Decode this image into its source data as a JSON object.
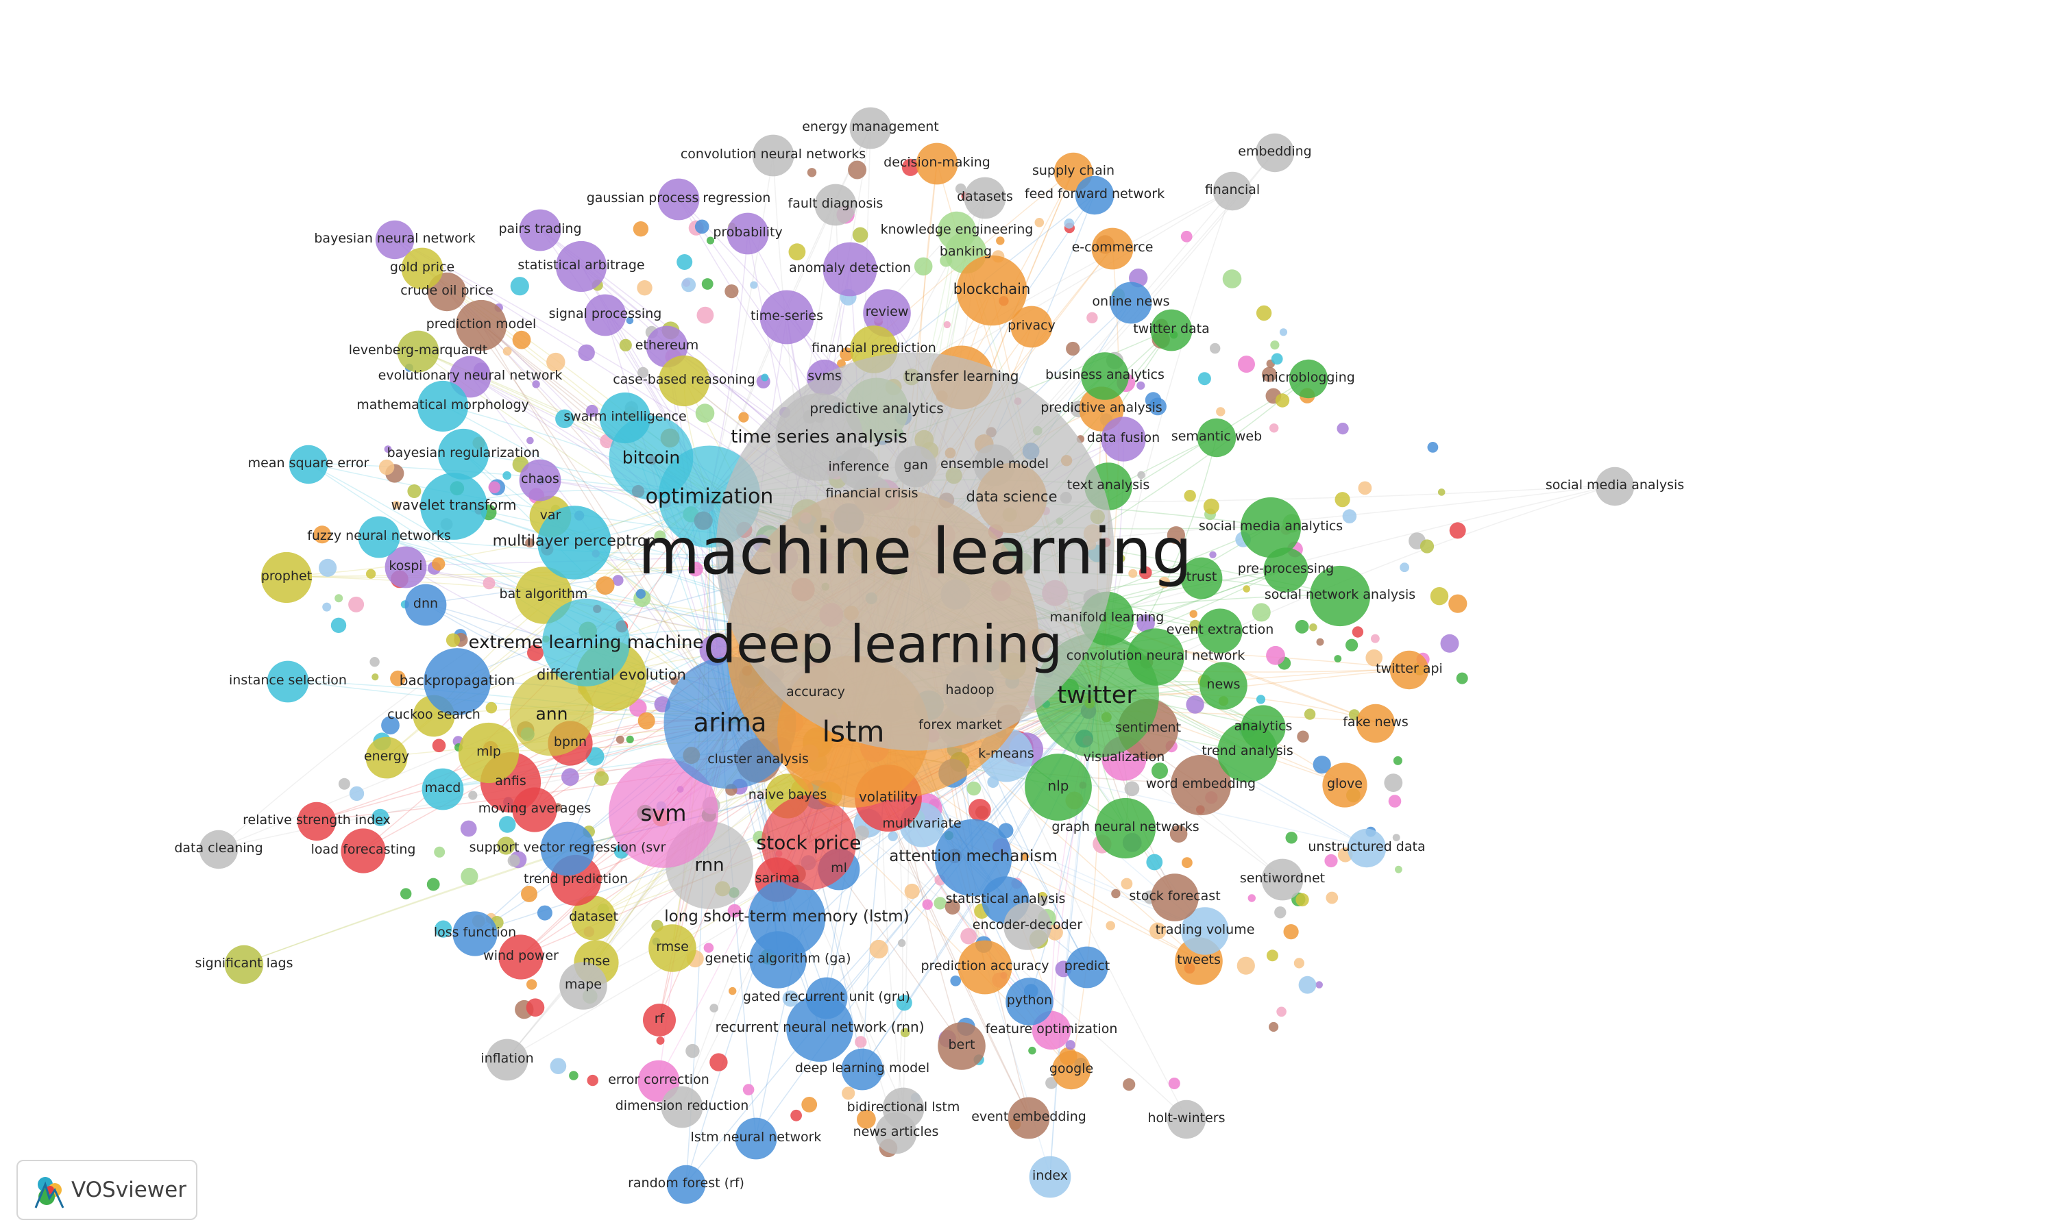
{
  "app": {
    "logo_text": "VOSviewer"
  },
  "colors": {
    "red": "#e8474b",
    "green": "#44b346",
    "blue": "#4a90d8",
    "yellow": "#cdc43c",
    "purple": "#a87fd8",
    "cyan": "#3fc1d9",
    "orange": "#f09a3a",
    "brown": "#b07a63",
    "pink": "#ee7fd0",
    "grey": "#bdbdbd",
    "lightgreen": "#a5d98d",
    "lightblue": "#9ec9ec",
    "lightpink": "#f2a8c4",
    "olive": "#b8c24a",
    "lightorange": "#f7c489",
    "label": "#222222"
  },
  "chart_data": {
    "type": "bibliometric-network",
    "nodes": [
      {
        "label": "machine learning",
        "weight": 100,
        "cluster": "grey"
      },
      {
        "label": "deep learning",
        "weight": 82,
        "cluster": "orange"
      },
      {
        "label": "lstm",
        "weight": 45,
        "cluster": "orange"
      },
      {
        "label": "arima",
        "weight": 40,
        "cluster": "blue"
      },
      {
        "label": "twitter",
        "weight": 38,
        "cluster": "green"
      },
      {
        "label": "svm",
        "weight": 34,
        "cluster": "pink"
      },
      {
        "label": "optimization",
        "weight": 32,
        "cluster": "cyan"
      },
      {
        "label": "stock price",
        "weight": 30,
        "cluster": "red"
      },
      {
        "label": "rnn",
        "weight": 28,
        "cluster": "grey"
      },
      {
        "label": "extreme learning machine",
        "weight": 28,
        "cluster": "cyan"
      },
      {
        "label": "time series analysis",
        "weight": 28,
        "cluster": "grey"
      },
      {
        "label": "bitcoin",
        "weight": 27,
        "cluster": "cyan"
      },
      {
        "label": "ann",
        "weight": 27,
        "cluster": "yellow"
      },
      {
        "label": "attention mechanism",
        "weight": 25,
        "cluster": "blue"
      },
      {
        "label": "long short-term memory (lstm)",
        "weight": 25,
        "cluster": "blue"
      },
      {
        "label": "multilayer perceptron",
        "weight": 24,
        "cluster": "cyan"
      },
      {
        "label": "differential evolution",
        "weight": 23,
        "cluster": "yellow"
      },
      {
        "label": "blockchain",
        "weight": 23,
        "cluster": "orange"
      },
      {
        "label": "data science",
        "weight": 23,
        "cluster": "orange"
      },
      {
        "label": "wavelet transform",
        "weight": 22,
        "cluster": "cyan"
      },
      {
        "label": "backpropagation",
        "weight": 22,
        "cluster": "blue"
      },
      {
        "label": "volatility",
        "weight": 22,
        "cluster": "red"
      },
      {
        "label": "recurrent neural network (rnn)",
        "weight": 22,
        "cluster": "blue"
      },
      {
        "label": "nlp",
        "weight": 22,
        "cluster": "green"
      },
      {
        "label": "transfer learning",
        "weight": 21,
        "cluster": "orange"
      },
      {
        "label": "predictive analytics",
        "weight": 21,
        "cluster": "lightgreen"
      },
      {
        "label": "social media analytics",
        "weight": 20,
        "cluster": "green"
      },
      {
        "label": "social network analysis",
        "weight": 20,
        "cluster": "green"
      },
      {
        "label": "sentiment",
        "weight": 20,
        "cluster": "brown"
      },
      {
        "label": "word embedding",
        "weight": 20,
        "cluster": "brown"
      },
      {
        "label": "trend analysis",
        "weight": 20,
        "cluster": "green"
      },
      {
        "label": "graph neural networks",
        "weight": 20,
        "cluster": "green"
      },
      {
        "label": "anfis",
        "weight": 20,
        "cluster": "red"
      },
      {
        "label": "mlp",
        "weight": 20,
        "cluster": "yellow"
      },
      {
        "label": "bat algorithm",
        "weight": 19,
        "cluster": "yellow"
      },
      {
        "label": "genetic algorithm (ga)",
        "weight": 19,
        "cluster": "blue"
      },
      {
        "label": "convolution neural network",
        "weight": 19,
        "cluster": "green"
      },
      {
        "label": "manifold learning",
        "weight": 18,
        "cluster": "green"
      },
      {
        "label": "anomaly detection",
        "weight": 18,
        "cluster": "purple"
      },
      {
        "label": "time-series",
        "weight": 18,
        "cluster": "purple"
      },
      {
        "label": "prediction accuracy",
        "weight": 18,
        "cluster": "orange"
      },
      {
        "label": "accuracy",
        "weight": 18,
        "cluster": "grey"
      },
      {
        "label": "hadoop",
        "weight": 18,
        "cluster": "lightblue"
      },
      {
        "label": "k-means",
        "weight": 18,
        "cluster": "lightblue"
      },
      {
        "label": "support vector regression (svr",
        "weight": 18,
        "cluster": "blue"
      },
      {
        "label": "trend prediction",
        "weight": 17,
        "cluster": "red"
      },
      {
        "label": "prediction model",
        "weight": 17,
        "cluster": "brown"
      },
      {
        "label": "mathematical morphology",
        "weight": 17,
        "cluster": "cyan"
      },
      {
        "label": "bayesian regularization",
        "weight": 17,
        "cluster": "cyan"
      },
      {
        "label": "statistical arbitrage",
        "weight": 17,
        "cluster": "purple"
      },
      {
        "label": "case-based reasoning",
        "weight": 17,
        "cluster": "yellow"
      },
      {
        "label": "swarm intelligence",
        "weight": 17,
        "cluster": "cyan"
      },
      {
        "label": "prophet",
        "weight": 17,
        "cluster": "yellow"
      },
      {
        "label": "news",
        "weight": 16,
        "cluster": "green"
      },
      {
        "label": "rmse",
        "weight": 16,
        "cluster": "yellow"
      },
      {
        "label": "mape",
        "weight": 16,
        "cluster": "grey"
      },
      {
        "label": "python",
        "weight": 16,
        "cluster": "blue"
      },
      {
        "label": "bert",
        "weight": 16,
        "cluster": "brown"
      },
      {
        "label": "tweets",
        "weight": 16,
        "cluster": "orange"
      },
      {
        "label": "trading volume",
        "weight": 16,
        "cluster": "lightblue"
      },
      {
        "label": "stock forecast",
        "weight": 16,
        "cluster": "brown"
      },
      {
        "label": "statistical analysis",
        "weight": 16,
        "cluster": "blue"
      },
      {
        "label": "encoder-decoder",
        "weight": 16,
        "cluster": "grey"
      },
      {
        "label": "review",
        "weight": 16,
        "cluster": "purple"
      },
      {
        "label": "financial prediction",
        "weight": 16,
        "cluster": "yellow"
      },
      {
        "label": "text analysis",
        "weight": 16,
        "cluster": "green"
      },
      {
        "label": "business analytics",
        "weight": 16,
        "cluster": "green"
      },
      {
        "label": "predictive analysis",
        "weight": 15,
        "cluster": "orange"
      },
      {
        "label": "data fusion",
        "weight": 15,
        "cluster": "purple"
      },
      {
        "label": "pre-processing",
        "weight": 15,
        "cluster": "green"
      },
      {
        "label": "event extraction",
        "weight": 15,
        "cluster": "green"
      },
      {
        "label": "analytics",
        "weight": 15,
        "cluster": "green"
      },
      {
        "label": "glove",
        "weight": 15,
        "cluster": "orange"
      },
      {
        "label": "visualization",
        "weight": 15,
        "cluster": "pink"
      },
      {
        "label": "forex market",
        "weight": 15,
        "cluster": "grey"
      },
      {
        "label": "cluster analysis",
        "weight": 15,
        "cluster": "brown"
      },
      {
        "label": "naive bayes",
        "weight": 15,
        "cluster": "yellow"
      },
      {
        "label": "multivariate",
        "weight": 15,
        "cluster": "lightblue"
      },
      {
        "label": "sarima",
        "weight": 15,
        "cluster": "red"
      },
      {
        "label": "ml",
        "weight": 14,
        "cluster": "blue"
      },
      {
        "label": "bpnn",
        "weight": 15,
        "cluster": "red"
      },
      {
        "label": "dataset",
        "weight": 15,
        "cluster": "yellow"
      },
      {
        "label": "wind power",
        "weight": 15,
        "cluster": "red"
      },
      {
        "label": "mse",
        "weight": 15,
        "cluster": "yellow"
      },
      {
        "label": "loss function",
        "weight": 15,
        "cluster": "blue"
      },
      {
        "label": "moving averages",
        "weight": 15,
        "cluster": "red"
      },
      {
        "label": "load forecasting",
        "weight": 15,
        "cluster": "red"
      },
      {
        "label": "macd",
        "weight": 14,
        "cluster": "cyan"
      },
      {
        "label": "cuckoo search",
        "weight": 14,
        "cluster": "yellow"
      },
      {
        "label": "energy",
        "weight": 14,
        "cluster": "yellow"
      },
      {
        "label": "instance selection",
        "weight": 14,
        "cluster": "cyan"
      },
      {
        "label": "dnn",
        "weight": 14,
        "cluster": "blue"
      },
      {
        "label": "kospi",
        "weight": 14,
        "cluster": "purple"
      },
      {
        "label": "fuzzy neural networks",
        "weight": 14,
        "cluster": "cyan"
      },
      {
        "label": "var",
        "weight": 14,
        "cluster": "yellow"
      },
      {
        "label": "chaos",
        "weight": 14,
        "cluster": "purple"
      },
      {
        "label": "mean square error",
        "weight": 13,
        "cluster": "cyan"
      },
      {
        "label": "evolutionary neural network",
        "weight": 14,
        "cluster": "purple"
      },
      {
        "label": "levenberg-marquardt",
        "weight": 14,
        "cluster": "olive"
      },
      {
        "label": "crude oil price",
        "weight": 13,
        "cluster": "brown"
      },
      {
        "label": "gold price",
        "weight": 14,
        "cluster": "yellow"
      },
      {
        "label": "bayesian neural network",
        "weight": 13,
        "cluster": "purple"
      },
      {
        "label": "pairs trading",
        "weight": 14,
        "cluster": "purple"
      },
      {
        "label": "signal processing",
        "weight": 14,
        "cluster": "purple"
      },
      {
        "label": "ethereum",
        "weight": 14,
        "cluster": "purple"
      },
      {
        "label": "gaussian process regression",
        "weight": 14,
        "cluster": "purple"
      },
      {
        "label": "convolution neural networks",
        "weight": 14,
        "cluster": "grey"
      },
      {
        "label": "energy management",
        "weight": 14,
        "cluster": "grey"
      },
      {
        "label": "fault diagnosis",
        "weight": 14,
        "cluster": "grey"
      },
      {
        "label": "probability",
        "weight": 14,
        "cluster": "purple"
      },
      {
        "label": "decision-making",
        "weight": 14,
        "cluster": "orange"
      },
      {
        "label": "datasets",
        "weight": 14,
        "cluster": "grey"
      },
      {
        "label": "knowledge engineering",
        "weight": 13,
        "cluster": "lightgreen"
      },
      {
        "label": "banking",
        "weight": 14,
        "cluster": "lightgreen"
      },
      {
        "label": "supply chain",
        "weight": 13,
        "cluster": "orange"
      },
      {
        "label": "feed forward network",
        "weight": 13,
        "cluster": "blue"
      },
      {
        "label": "e-commerce",
        "weight": 14,
        "cluster": "orange"
      },
      {
        "label": "financial",
        "weight": 13,
        "cluster": "grey"
      },
      {
        "label": "embedding",
        "weight": 13,
        "cluster": "grey"
      },
      {
        "label": "online news",
        "weight": 14,
        "cluster": "blue"
      },
      {
        "label": "twitter data",
        "weight": 14,
        "cluster": "green"
      },
      {
        "label": "privacy",
        "weight": 14,
        "cluster": "orange"
      },
      {
        "label": "svms",
        "weight": 12,
        "cluster": "purple"
      },
      {
        "label": "microblogging",
        "weight": 13,
        "cluster": "green"
      },
      {
        "label": "semantic web",
        "weight": 13,
        "cluster": "green"
      },
      {
        "label": "inference",
        "weight": 14,
        "cluster": "grey"
      },
      {
        "label": "gan",
        "weight": 14,
        "cluster": "grey"
      },
      {
        "label": "ensemble model",
        "weight": 14,
        "cluster": "grey"
      },
      {
        "label": "financial crisis",
        "weight": 13,
        "cluster": "grey"
      },
      {
        "label": "social media analysis",
        "weight": 13,
        "cluster": "grey"
      },
      {
        "label": "trust",
        "weight": 14,
        "cluster": "green"
      },
      {
        "label": "twitter api",
        "weight": 13,
        "cluster": "orange"
      },
      {
        "label": "fake news",
        "weight": 13,
        "cluster": "orange"
      },
      {
        "label": "unstructured data",
        "weight": 13,
        "cluster": "lightblue"
      },
      {
        "label": "sentiwordnet",
        "weight": 14,
        "cluster": "grey"
      },
      {
        "label": "relative strength index",
        "weight": 13,
        "cluster": "red"
      },
      {
        "label": "data cleaning",
        "weight": 13,
        "cluster": "grey"
      },
      {
        "label": "significant lags",
        "weight": 13,
        "cluster": "olive"
      },
      {
        "label": "inflation",
        "weight": 14,
        "cluster": "grey"
      },
      {
        "label": "rf",
        "weight": 11,
        "cluster": "red"
      },
      {
        "label": "error correction",
        "weight": 14,
        "cluster": "pink"
      },
      {
        "label": "dimension reduction",
        "weight": 14,
        "cluster": "grey"
      },
      {
        "label": "lstm neural network",
        "weight": 14,
        "cluster": "blue"
      },
      {
        "label": "random forest (rf)",
        "weight": 13,
        "cluster": "blue"
      },
      {
        "label": "deep learning model",
        "weight": 14,
        "cluster": "blue"
      },
      {
        "label": "bidirectional lstm",
        "weight": 14,
        "cluster": "grey"
      },
      {
        "label": "news articles",
        "weight": 14,
        "cluster": "grey"
      },
      {
        "label": "event embedding",
        "weight": 14,
        "cluster": "brown"
      },
      {
        "label": "gated recurrent unit (gru)",
        "weight": 14,
        "cluster": "blue"
      },
      {
        "label": "feature optimization",
        "weight": 13,
        "cluster": "pink"
      },
      {
        "label": "google",
        "weight": 13,
        "cluster": "orange"
      },
      {
        "label": "predict",
        "weight": 14,
        "cluster": "blue"
      },
      {
        "label": "holt-winters",
        "weight": 13,
        "cluster": "grey"
      },
      {
        "label": "index",
        "weight": 14,
        "cluster": "lightblue"
      }
    ]
  }
}
